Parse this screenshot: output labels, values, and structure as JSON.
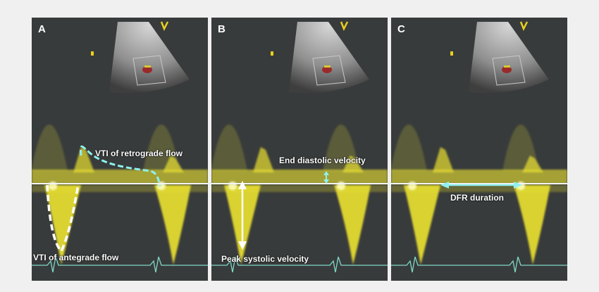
{
  "figure": {
    "panels": [
      {
        "letter": "A",
        "annotations": {
          "retrograde": "VTI of retrograde flow",
          "antegrade": "VTI of antegrade flow"
        }
      },
      {
        "letter": "B",
        "annotations": {
          "end_diastolic": "End diastolic velocity",
          "peak_systolic": "Peak systolic velocity"
        }
      },
      {
        "letter": "C",
        "annotations": {
          "dfr": "DFR duration"
        }
      }
    ],
    "colors": {
      "background": "#f0f0f0",
      "panel": "#383b3b",
      "doppler": "#e8e030",
      "tracing": "#8ff0f0",
      "ecg": "#7fd8c8",
      "label": "#ffffff"
    }
  }
}
